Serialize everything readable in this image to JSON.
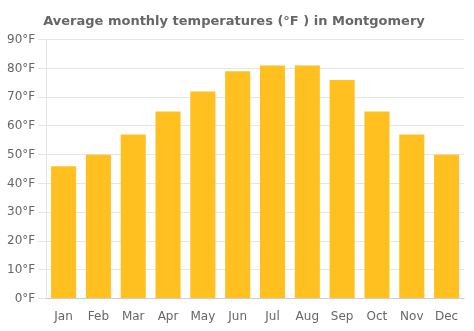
{
  "chart_data": {
    "type": "bar",
    "title": "Average monthly temperatures (°F ) in Montgomery",
    "categories": [
      "Jan",
      "Feb",
      "Mar",
      "Apr",
      "May",
      "Jun",
      "Jul",
      "Aug",
      "Sep",
      "Oct",
      "Nov",
      "Dec"
    ],
    "values": [
      46,
      50,
      57,
      65,
      72,
      79,
      81,
      81,
      76,
      65,
      57,
      50
    ],
    "color": "#FFC020",
    "ylim": [
      0,
      90
    ],
    "yticks": [
      {
        "value": 0,
        "label": "0°F"
      },
      {
        "value": 10,
        "label": "10°F"
      },
      {
        "value": 20,
        "label": "20°F"
      },
      {
        "value": 30,
        "label": "30°F"
      },
      {
        "value": 40,
        "label": "40°F"
      },
      {
        "value": 50,
        "label": "50°F"
      },
      {
        "value": 60,
        "label": "60°F"
      },
      {
        "value": 70,
        "label": "70°F"
      },
      {
        "value": 80,
        "label": "80°F"
      },
      {
        "value": 90,
        "label": "90°F"
      }
    ],
    "grid": true
  }
}
